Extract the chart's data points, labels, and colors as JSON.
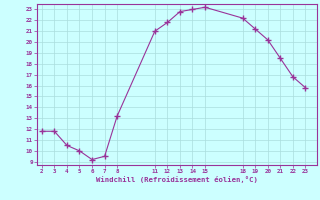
{
  "x": [
    2,
    3,
    4,
    5,
    6,
    7,
    8,
    11,
    12,
    13,
    14,
    15,
    18,
    19,
    20,
    21,
    22,
    23
  ],
  "y": [
    11.8,
    11.8,
    10.5,
    10.0,
    9.2,
    9.5,
    13.2,
    21.0,
    21.8,
    22.8,
    23.0,
    23.2,
    22.2,
    21.2,
    20.2,
    18.5,
    16.8,
    15.8
  ],
  "x_ticks": [
    2,
    3,
    4,
    5,
    6,
    7,
    8,
    11,
    12,
    13,
    14,
    15,
    18,
    19,
    20,
    21,
    22,
    23
  ],
  "y_ticks": [
    9,
    10,
    11,
    12,
    13,
    14,
    15,
    16,
    17,
    18,
    19,
    20,
    21,
    22,
    23
  ],
  "ylim": [
    8.7,
    23.5
  ],
  "xlim": [
    1.6,
    23.9
  ],
  "line_color": "#993399",
  "marker_color": "#993399",
  "bg_color": "#ccffff",
  "grid_color": "#aadddd",
  "xlabel": "Windchill (Refroidissement éolien,°C)",
  "xlabel_color": "#993399",
  "tick_label_color": "#993399",
  "border_color": "#993399"
}
